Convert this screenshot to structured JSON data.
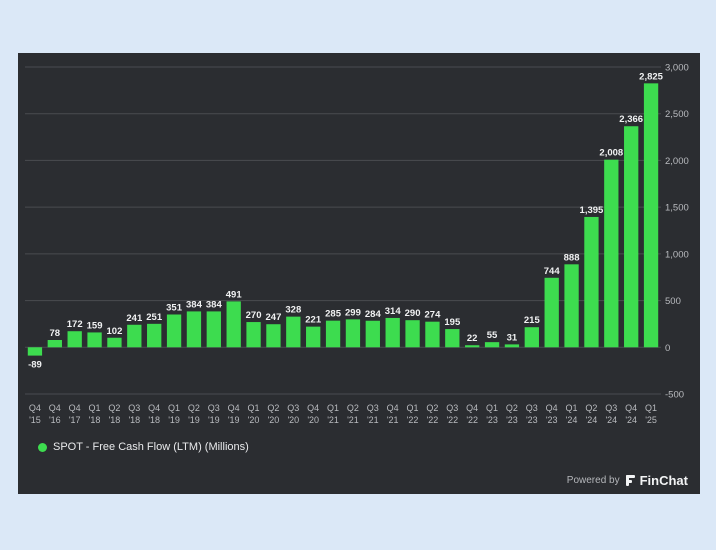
{
  "chart_data": {
    "type": "bar",
    "categories": [
      [
        "Q4",
        "'15"
      ],
      [
        "Q4",
        "'16"
      ],
      [
        "Q4",
        "'17"
      ],
      [
        "Q1",
        "'18"
      ],
      [
        "Q2",
        "'18"
      ],
      [
        "Q3",
        "'18"
      ],
      [
        "Q4",
        "'18"
      ],
      [
        "Q1",
        "'19"
      ],
      [
        "Q2",
        "'19"
      ],
      [
        "Q3",
        "'19"
      ],
      [
        "Q4",
        "'19"
      ],
      [
        "Q1",
        "'20"
      ],
      [
        "Q2",
        "'20"
      ],
      [
        "Q3",
        "'20"
      ],
      [
        "Q4",
        "'20"
      ],
      [
        "Q1",
        "'21"
      ],
      [
        "Q2",
        "'21"
      ],
      [
        "Q3",
        "'21"
      ],
      [
        "Q4",
        "'21"
      ],
      [
        "Q1",
        "'22"
      ],
      [
        "Q2",
        "'22"
      ],
      [
        "Q3",
        "'22"
      ],
      [
        "Q4",
        "'22"
      ],
      [
        "Q1",
        "'23"
      ],
      [
        "Q2",
        "'23"
      ],
      [
        "Q3",
        "'23"
      ],
      [
        "Q4",
        "'23"
      ],
      [
        "Q1",
        "'24"
      ],
      [
        "Q2",
        "'24"
      ],
      [
        "Q3",
        "'24"
      ],
      [
        "Q4",
        "'24"
      ],
      [
        "Q1",
        "'25"
      ]
    ],
    "series": [
      {
        "name": "SPOT - Free Cash Flow (LTM) (Millions)",
        "color": "#3ddc4f",
        "values": [
          -89,
          78,
          172,
          159,
          102,
          241,
          251,
          351,
          384,
          384,
          491,
          270,
          247,
          328,
          221,
          285,
          299,
          284,
          314,
          290,
          274,
          195,
          22,
          55,
          31,
          215,
          744,
          888,
          1395,
          2008,
          2366,
          2825
        ],
        "labels": [
          "-89",
          "78",
          "172",
          "159",
          "102",
          "241",
          "251",
          "351",
          "384",
          "384",
          "491",
          "270",
          "247",
          "328",
          "221",
          "285",
          "299",
          "284",
          "314",
          "290",
          "274",
          "195",
          "22",
          "55",
          "31",
          "215",
          "744",
          "888",
          "1,395",
          "2,008",
          "2,366",
          "2,825"
        ]
      }
    ],
    "y_ticks": [
      "-500",
      "0",
      "500",
      "1,000",
      "1,500",
      "2,000",
      "2,500",
      "3,000"
    ],
    "y_tick_values": [
      -500,
      0,
      500,
      1000,
      1500,
      2000,
      2500,
      3000
    ],
    "ylim": [
      -500,
      3000
    ],
    "grid": true,
    "axis_position": "right",
    "legend_position": "bottom-left"
  },
  "legend": {
    "label": "SPOT - Free Cash Flow (LTM) (Millions)"
  },
  "footer": {
    "powered_by": "Powered by",
    "brand": "FinChat"
  }
}
